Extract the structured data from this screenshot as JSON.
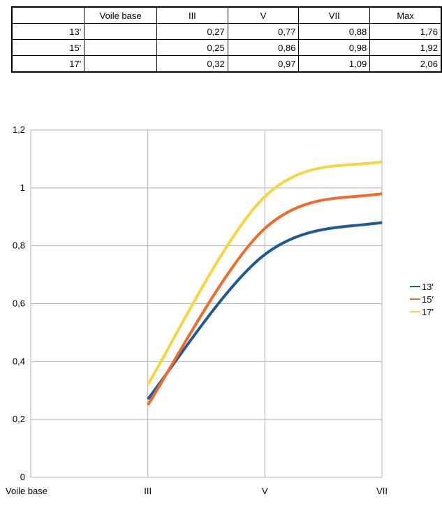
{
  "table": {
    "header": [
      "",
      "Voile base",
      "III",
      "V",
      "VII",
      "Max"
    ],
    "rows": [
      [
        "13'",
        "",
        "0,27",
        "0,77",
        "0,88",
        "1,76"
      ],
      [
        "15'",
        "",
        "0,25",
        "0,86",
        "0,98",
        "1,92"
      ],
      [
        "17'",
        "",
        "0,32",
        "0,97",
        "1,09",
        "2,06"
      ]
    ]
  },
  "chart_data": {
    "type": "line",
    "categories": [
      "Voile base",
      "III",
      "V",
      "VII"
    ],
    "ylim": [
      0,
      1.2
    ],
    "y_ticks": [
      "0",
      "0,2",
      "0,4",
      "0,6",
      "0,8",
      "1",
      "1,2"
    ],
    "grid": true,
    "legend_position": "right",
    "series": [
      {
        "name": "13'",
        "color": "#1f5a96",
        "values": [
          null,
          0.27,
          0.77,
          0.88
        ]
      },
      {
        "name": "15'",
        "color": "#f06a2c",
        "values": [
          null,
          0.25,
          0.86,
          0.98
        ]
      },
      {
        "name": "17'",
        "color": "#f8d540",
        "values": [
          null,
          0.32,
          0.97,
          1.09
        ]
      }
    ]
  }
}
